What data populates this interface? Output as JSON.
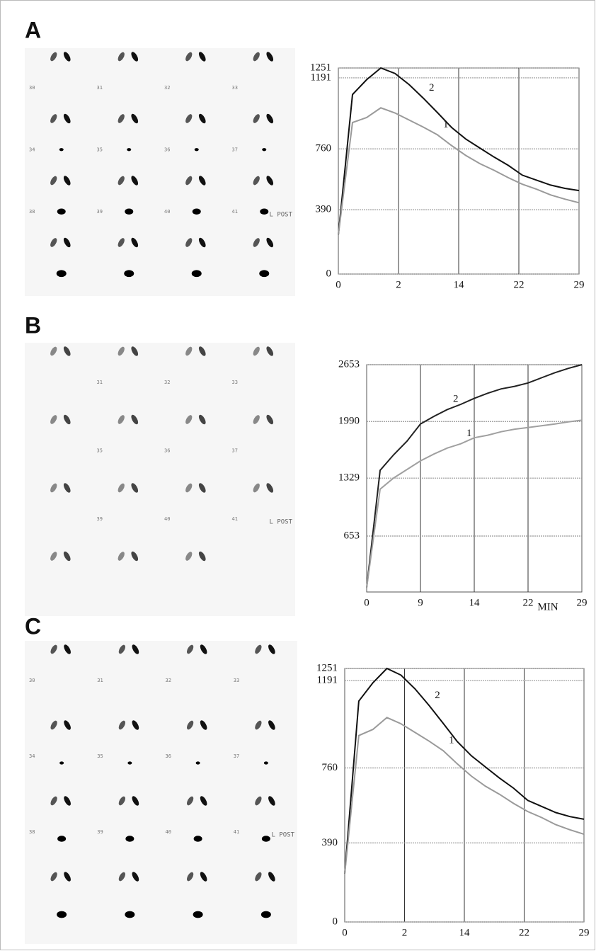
{
  "panel_labels": [
    "A",
    "B",
    "C"
  ],
  "images": [
    {
      "frame_labels": [
        [
          "30",
          "31",
          "32",
          "33"
        ],
        [
          "34",
          "35",
          "36",
          "37"
        ],
        [
          "38",
          "39",
          "40",
          "41"
        ]
      ],
      "view_label": "L POST"
    },
    {
      "frame_labels": [
        [
          "31",
          "32",
          "33"
        ],
        [
          "35",
          "36",
          "37"
        ],
        [
          "39",
          "40",
          "41"
        ]
      ],
      "view_label": "L POST"
    },
    {
      "frame_labels": [
        [
          "30",
          "31",
          "32",
          "33"
        ],
        [
          "34",
          "35",
          "36",
          "37"
        ],
        [
          "38",
          "39",
          "40",
          "41"
        ]
      ],
      "view_label": "L POST"
    }
  ],
  "chart_data": [
    {
      "type": "line",
      "x_tick_labels": [
        "0",
        "2",
        "14",
        "22",
        "29"
      ],
      "ylim": [
        0,
        1251
      ],
      "yticks": [
        0,
        390,
        760,
        1191,
        1251
      ],
      "grid": true,
      "series": [
        {
          "name": "2",
          "color": "#111111",
          "values": [
            238,
            1090,
            1180,
            1251,
            1218,
            1150,
            1068,
            980,
            890,
            820,
            765,
            710,
            660,
            600,
            570,
            540,
            520,
            507
          ]
        },
        {
          "name": "1",
          "color": "#9a9a9a",
          "values": [
            238,
            920,
            950,
            1009,
            978,
            935,
            892,
            845,
            780,
            720,
            670,
            630,
            585,
            545,
            515,
            480,
            455,
            433
          ]
        }
      ]
    },
    {
      "type": "line",
      "x_tick_labels": [
        "0",
        "9",
        "14",
        "22",
        "29"
      ],
      "x_label": "MIN",
      "ylim": [
        0,
        2653
      ],
      "yticks": [
        653,
        1329,
        1990,
        2653
      ],
      "grid": true,
      "series": [
        {
          "name": "2",
          "color": "#222222",
          "values": [
            50,
            1420,
            1600,
            1760,
            1960,
            2050,
            2130,
            2190,
            2260,
            2320,
            2370,
            2400,
            2440,
            2500,
            2560,
            2610,
            2653
          ]
        },
        {
          "name": "1",
          "color": "#a0a0a0",
          "values": [
            50,
            1200,
            1330,
            1430,
            1530,
            1610,
            1680,
            1730,
            1800,
            1830,
            1870,
            1900,
            1920,
            1940,
            1960,
            1985,
            2005
          ]
        }
      ]
    },
    {
      "type": "line",
      "x_tick_labels": [
        "0",
        "2",
        "14",
        "22",
        "29"
      ],
      "ylim": [
        0,
        1251
      ],
      "yticks": [
        0,
        390,
        760,
        1191,
        1251
      ],
      "grid": true,
      "series": [
        {
          "name": "2",
          "color": "#111111",
          "values": [
            238,
            1090,
            1180,
            1251,
            1218,
            1150,
            1068,
            980,
            890,
            820,
            765,
            710,
            660,
            600,
            570,
            540,
            520,
            507
          ]
        },
        {
          "name": "1",
          "color": "#9a9a9a",
          "values": [
            238,
            920,
            950,
            1009,
            978,
            935,
            892,
            845,
            780,
            720,
            670,
            630,
            585,
            545,
            515,
            480,
            455,
            433
          ]
        }
      ]
    }
  ]
}
